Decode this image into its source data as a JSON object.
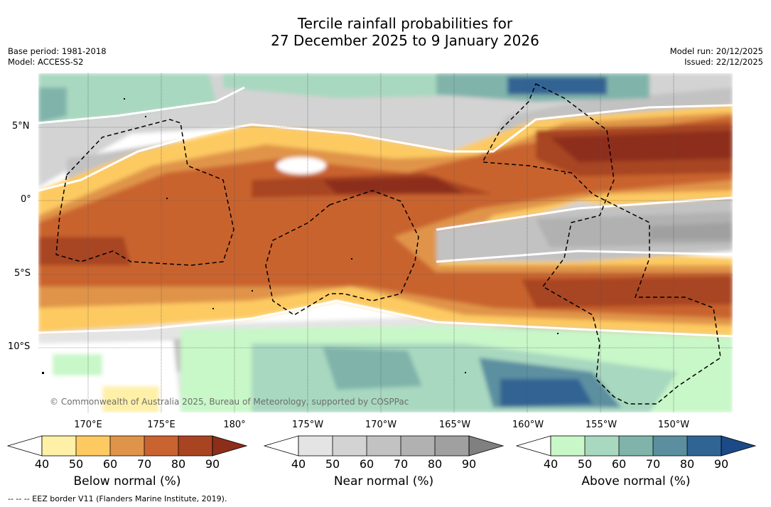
{
  "title": {
    "line1": "Tercile rainfall probabilities for",
    "line2": "27 December 2025 to 9 January 2026"
  },
  "meta_left": {
    "base_period": "Base period: 1981-2018",
    "model": "Model: ACCESS-S2"
  },
  "meta_right": {
    "model_run": "Model run: 20/12/2025",
    "issued": "Issued: 22/12/2025"
  },
  "map": {
    "lat_labels": [
      "5°N",
      "0°",
      "5°S",
      "10°S"
    ],
    "lon_labels": [
      "170°E",
      "175°E",
      "180°",
      "175°W",
      "170°W",
      "165°W",
      "160°W",
      "155°W",
      "150°W"
    ],
    "copyright": "© Commonwealth of Australia 2025, Bureau of Meteorology, supported by COSPPac"
  },
  "colorbars": [
    {
      "label": "Below normal (%)",
      "ticks": [
        "40",
        "50",
        "60",
        "70",
        "80",
        "90"
      ],
      "colors": [
        "#fff0a8",
        "#fdca62",
        "#e0944a",
        "#c9632f",
        "#a84422",
        "#8d2e1b"
      ]
    },
    {
      "label": "Near normal (%)",
      "ticks": [
        "40",
        "50",
        "60",
        "70",
        "80",
        "90"
      ],
      "colors": [
        "#e4e4e4",
        "#d3d3d3",
        "#c2c2c2",
        "#b1b1b1",
        "#a0a0a0",
        "#808080"
      ]
    },
    {
      "label": "Above normal (%)",
      "ticks": [
        "40",
        "50",
        "60",
        "70",
        "80",
        "90"
      ],
      "colors": [
        "#c8f7c8",
        "#a8d8bf",
        "#80b4aa",
        "#5b8fa0",
        "#306493",
        "#1c4a88"
      ]
    }
  ],
  "footnote": "--  --  -- EEZ border V11 (Flanders Marine Institute, 2019)."
}
